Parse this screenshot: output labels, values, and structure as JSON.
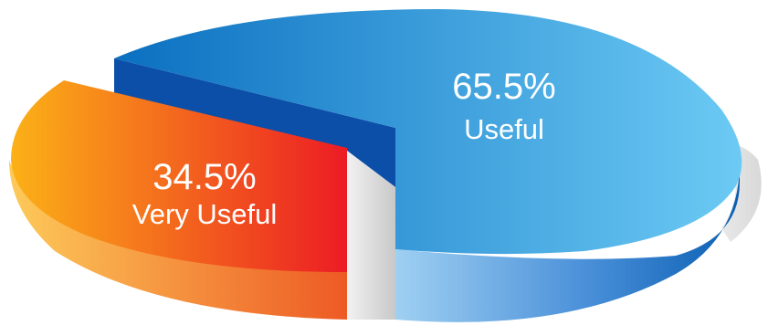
{
  "chart_data": {
    "type": "pie",
    "categories": [
      "Useful",
      "Very Useful"
    ],
    "values": [
      65.5,
      34.5
    ],
    "value_labels": [
      "65.5%",
      "34.5%"
    ],
    "exploded": "Very Useful",
    "style": "3d",
    "colors": {
      "Useful": [
        "#0a6fc0",
        "#6ccaf4"
      ],
      "Very Useful": [
        "#fbb117",
        "#ec1c24"
      ]
    }
  }
}
